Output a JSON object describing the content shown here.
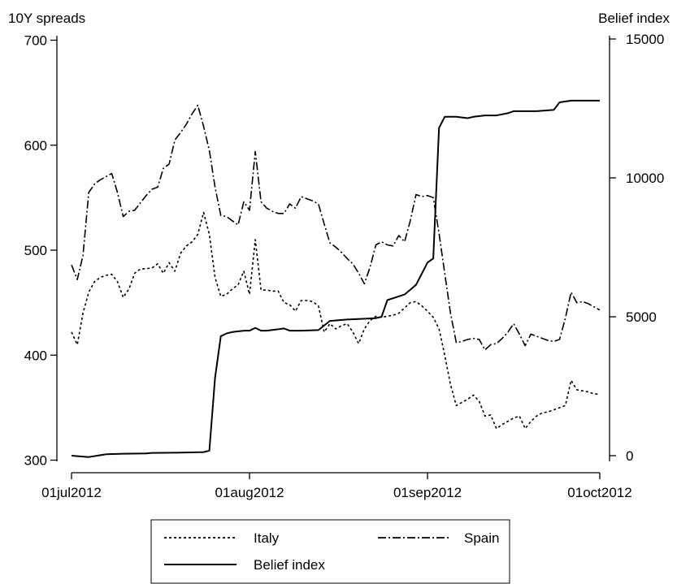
{
  "chart_data": {
    "type": "line",
    "title": "",
    "xlabel": "",
    "ylabel": "10Y spreads",
    "y2label": "Belief index",
    "xlim": [
      "2012-07-01",
      "2012-10-01"
    ],
    "ylim": [
      290,
      710
    ],
    "y2lim": [
      -500,
      15300
    ],
    "x_ticks": [
      {
        "date": "2012-07-01",
        "label": "01jul2012"
      },
      {
        "date": "2012-08-01",
        "label": "01aug2012"
      },
      {
        "date": "2012-09-01",
        "label": "01sep2012"
      },
      {
        "date": "2012-10-01",
        "label": "01oct2012"
      }
    ],
    "y_ticks": [
      300,
      400,
      500,
      600,
      700
    ],
    "y2_ticks": [
      0,
      5000,
      10000,
      15000
    ],
    "grid": false,
    "legend_position": "bottom",
    "series": [
      {
        "name": "Italy",
        "axis": "left",
        "style": "dotted",
        "points": [
          [
            "2012-07-01",
            422
          ],
          [
            "2012-07-02",
            410
          ],
          [
            "2012-07-03",
            440
          ],
          [
            "2012-07-04",
            460
          ],
          [
            "2012-07-05",
            470
          ],
          [
            "2012-07-06",
            474
          ],
          [
            "2012-07-07",
            476
          ],
          [
            "2012-07-08",
            477
          ],
          [
            "2012-07-09",
            470
          ],
          [
            "2012-07-10",
            455
          ],
          [
            "2012-07-11",
            463
          ],
          [
            "2012-07-12",
            478
          ],
          [
            "2012-07-13",
            482
          ],
          [
            "2012-07-15",
            483
          ],
          [
            "2012-07-16",
            487
          ],
          [
            "2012-07-17",
            478
          ],
          [
            "2012-07-18",
            488
          ],
          [
            "2012-07-19",
            480
          ],
          [
            "2012-07-20",
            497
          ],
          [
            "2012-07-21",
            504
          ],
          [
            "2012-07-22",
            508
          ],
          [
            "2012-07-23",
            515
          ],
          [
            "2012-07-24",
            536
          ],
          [
            "2012-07-25",
            515
          ],
          [
            "2012-07-26",
            474
          ],
          [
            "2012-07-27",
            456
          ],
          [
            "2012-07-28",
            458
          ],
          [
            "2012-07-29",
            463
          ],
          [
            "2012-07-30",
            467
          ],
          [
            "2012-07-31",
            480
          ],
          [
            "2012-08-01",
            458
          ],
          [
            "2012-08-02",
            510
          ],
          [
            "2012-08-03",
            462
          ],
          [
            "2012-08-04",
            462
          ],
          [
            "2012-08-05",
            461
          ],
          [
            "2012-08-06",
            461
          ],
          [
            "2012-08-07",
            450
          ],
          [
            "2012-08-08",
            448
          ],
          [
            "2012-08-09",
            442
          ],
          [
            "2012-08-10",
            452
          ],
          [
            "2012-08-11",
            452
          ],
          [
            "2012-08-12",
            451
          ],
          [
            "2012-08-13",
            447
          ],
          [
            "2012-08-14",
            422
          ],
          [
            "2012-08-15",
            430
          ],
          [
            "2012-08-16",
            425
          ],
          [
            "2012-08-17",
            428
          ],
          [
            "2012-08-18",
            430
          ],
          [
            "2012-08-19",
            422
          ],
          [
            "2012-08-20",
            411
          ],
          [
            "2012-08-21",
            425
          ],
          [
            "2012-08-22",
            433
          ],
          [
            "2012-08-23",
            437
          ],
          [
            "2012-08-24",
            436
          ],
          [
            "2012-08-25",
            437
          ],
          [
            "2012-08-26",
            438
          ],
          [
            "2012-08-27",
            440
          ],
          [
            "2012-08-28",
            445
          ],
          [
            "2012-08-29",
            450
          ],
          [
            "2012-08-30",
            451
          ],
          [
            "2012-08-31",
            447
          ],
          [
            "2012-09-01",
            442
          ],
          [
            "2012-09-02",
            436
          ],
          [
            "2012-09-03",
            425
          ],
          [
            "2012-09-04",
            400
          ],
          [
            "2012-09-05",
            372
          ],
          [
            "2012-09-06",
            352
          ],
          [
            "2012-09-07",
            355
          ],
          [
            "2012-09-08",
            358
          ],
          [
            "2012-09-09",
            362
          ],
          [
            "2012-09-10",
            356
          ],
          [
            "2012-09-11",
            342
          ],
          [
            "2012-09-12",
            343
          ],
          [
            "2012-09-13",
            330
          ],
          [
            "2012-09-14",
            334
          ],
          [
            "2012-09-15",
            337
          ],
          [
            "2012-09-16",
            340
          ],
          [
            "2012-09-17",
            342
          ],
          [
            "2012-09-18",
            330
          ],
          [
            "2012-09-19",
            337
          ],
          [
            "2012-09-20",
            342
          ],
          [
            "2012-09-21",
            345
          ],
          [
            "2012-09-22",
            346
          ],
          [
            "2012-09-23",
            348
          ],
          [
            "2012-09-24",
            350
          ],
          [
            "2012-09-25",
            352
          ],
          [
            "2012-09-26",
            376
          ],
          [
            "2012-09-27",
            367
          ],
          [
            "2012-09-28",
            366
          ],
          [
            "2012-09-29",
            365
          ],
          [
            "2012-09-30",
            363
          ],
          [
            "2012-10-01",
            363
          ]
        ]
      },
      {
        "name": "Spain",
        "axis": "left",
        "style": "dashdot",
        "points": [
          [
            "2012-07-01",
            486
          ],
          [
            "2012-07-02",
            472
          ],
          [
            "2012-07-03",
            495
          ],
          [
            "2012-07-04",
            555
          ],
          [
            "2012-07-05",
            563
          ],
          [
            "2012-07-06",
            567
          ],
          [
            "2012-07-07",
            570
          ],
          [
            "2012-07-08",
            573
          ],
          [
            "2012-07-09",
            555
          ],
          [
            "2012-07-10",
            532
          ],
          [
            "2012-07-11",
            537
          ],
          [
            "2012-07-12",
            538
          ],
          [
            "2012-07-13",
            545
          ],
          [
            "2012-07-14",
            552
          ],
          [
            "2012-07-15",
            558
          ],
          [
            "2012-07-16",
            560
          ],
          [
            "2012-07-17",
            578
          ],
          [
            "2012-07-18",
            582
          ],
          [
            "2012-07-19",
            605
          ],
          [
            "2012-07-20",
            612
          ],
          [
            "2012-07-21",
            620
          ],
          [
            "2012-07-22",
            630
          ],
          [
            "2012-07-23",
            638
          ],
          [
            "2012-07-24",
            618
          ],
          [
            "2012-07-25",
            595
          ],
          [
            "2012-07-26",
            560
          ],
          [
            "2012-07-27",
            533
          ],
          [
            "2012-07-28",
            532
          ],
          [
            "2012-07-29",
            528
          ],
          [
            "2012-07-30",
            524
          ],
          [
            "2012-07-31",
            546
          ],
          [
            "2012-08-01",
            538
          ],
          [
            "2012-08-02",
            594
          ],
          [
            "2012-08-03",
            546
          ],
          [
            "2012-08-04",
            540
          ],
          [
            "2012-08-05",
            537
          ],
          [
            "2012-08-06",
            535
          ],
          [
            "2012-08-07",
            535
          ],
          [
            "2012-08-08",
            544
          ],
          [
            "2012-08-09",
            540
          ],
          [
            "2012-08-10",
            551
          ],
          [
            "2012-08-11",
            549
          ],
          [
            "2012-08-12",
            547
          ],
          [
            "2012-08-13",
            544
          ],
          [
            "2012-08-14",
            525
          ],
          [
            "2012-08-15",
            507
          ],
          [
            "2012-08-16",
            503
          ],
          [
            "2012-08-17",
            498
          ],
          [
            "2012-08-18",
            492
          ],
          [
            "2012-08-19",
            487
          ],
          [
            "2012-08-20",
            478
          ],
          [
            "2012-08-21",
            468
          ],
          [
            "2012-08-22",
            484
          ],
          [
            "2012-08-23",
            505
          ],
          [
            "2012-08-24",
            508
          ],
          [
            "2012-08-25",
            505
          ],
          [
            "2012-08-26",
            504
          ],
          [
            "2012-08-27",
            514
          ],
          [
            "2012-08-28",
            508
          ],
          [
            "2012-08-29",
            528
          ],
          [
            "2012-08-30",
            553
          ],
          [
            "2012-08-31",
            551
          ],
          [
            "2012-09-01",
            552
          ],
          [
            "2012-09-02",
            550
          ],
          [
            "2012-09-03",
            516
          ],
          [
            "2012-09-04",
            478
          ],
          [
            "2012-09-05",
            440
          ],
          [
            "2012-09-06",
            412
          ],
          [
            "2012-09-07",
            413
          ],
          [
            "2012-09-08",
            415
          ],
          [
            "2012-09-09",
            416
          ],
          [
            "2012-09-10",
            415
          ],
          [
            "2012-09-11",
            405
          ],
          [
            "2012-09-12",
            410
          ],
          [
            "2012-09-13",
            411
          ],
          [
            "2012-09-14",
            416
          ],
          [
            "2012-09-15",
            422
          ],
          [
            "2012-09-16",
            430
          ],
          [
            "2012-09-17",
            420
          ],
          [
            "2012-09-18",
            409
          ],
          [
            "2012-09-19",
            420
          ],
          [
            "2012-09-20",
            418
          ],
          [
            "2012-09-21",
            416
          ],
          [
            "2012-09-22",
            414
          ],
          [
            "2012-09-23",
            413
          ],
          [
            "2012-09-24",
            415
          ],
          [
            "2012-09-25",
            435
          ],
          [
            "2012-09-26",
            460
          ],
          [
            "2012-09-27",
            450
          ],
          [
            "2012-09-28",
            451
          ],
          [
            "2012-09-29",
            449
          ],
          [
            "2012-09-30",
            446
          ],
          [
            "2012-10-01",
            443
          ]
        ]
      },
      {
        "name": "Belief index",
        "axis": "right",
        "style": "solid",
        "points": [
          [
            "2012-07-01",
            0
          ],
          [
            "2012-07-04",
            -50
          ],
          [
            "2012-07-07",
            50
          ],
          [
            "2012-07-10",
            70
          ],
          [
            "2012-07-14",
            80
          ],
          [
            "2012-07-15",
            100
          ],
          [
            "2012-07-20",
            110
          ],
          [
            "2012-07-24",
            130
          ],
          [
            "2012-07-25",
            180
          ],
          [
            "2012-07-26",
            2800
          ],
          [
            "2012-07-27",
            4300
          ],
          [
            "2012-07-28",
            4400
          ],
          [
            "2012-07-29",
            4450
          ],
          [
            "2012-07-31",
            4500
          ],
          [
            "2012-08-01",
            4500
          ],
          [
            "2012-08-02",
            4600
          ],
          [
            "2012-08-03",
            4500
          ],
          [
            "2012-08-04",
            4500
          ],
          [
            "2012-08-06",
            4550
          ],
          [
            "2012-08-07",
            4580
          ],
          [
            "2012-08-08",
            4500
          ],
          [
            "2012-08-10",
            4500
          ],
          [
            "2012-08-13",
            4520
          ],
          [
            "2012-08-15",
            4850
          ],
          [
            "2012-08-18",
            4900
          ],
          [
            "2012-08-23",
            4950
          ],
          [
            "2012-08-24",
            5000
          ],
          [
            "2012-08-25",
            5600
          ],
          [
            "2012-08-28",
            5800
          ],
          [
            "2012-08-30",
            6150
          ],
          [
            "2012-09-01",
            6950
          ],
          [
            "2012-09-02",
            7100
          ],
          [
            "2012-09-03",
            11800
          ],
          [
            "2012-09-04",
            12200
          ],
          [
            "2012-09-06",
            12200
          ],
          [
            "2012-09-08",
            12150
          ],
          [
            "2012-09-09",
            12200
          ],
          [
            "2012-09-11",
            12250
          ],
          [
            "2012-09-13",
            12250
          ],
          [
            "2012-09-15",
            12330
          ],
          [
            "2012-09-16",
            12400
          ],
          [
            "2012-09-18",
            12400
          ],
          [
            "2012-09-20",
            12400
          ],
          [
            "2012-09-23",
            12450
          ],
          [
            "2012-09-24",
            12720
          ],
          [
            "2012-09-26",
            12780
          ],
          [
            "2012-10-01",
            12780
          ]
        ]
      }
    ]
  }
}
